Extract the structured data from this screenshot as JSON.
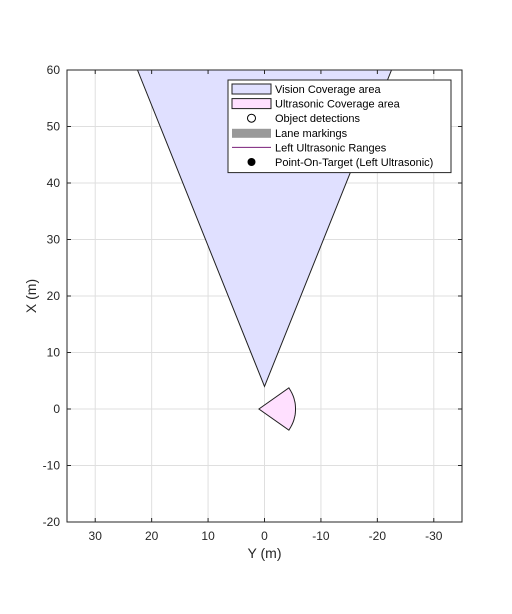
{
  "chart_data": {
    "type": "area",
    "title": "",
    "xlabel": "Y (m)",
    "ylabel": "X (m)",
    "x_direction": "reversed",
    "xlim": [
      -35,
      35
    ],
    "ylim": [
      -20,
      60
    ],
    "xticks": [
      30,
      20,
      10,
      0,
      -10,
      -20,
      -30
    ],
    "yticks": [
      -20,
      -10,
      0,
      10,
      20,
      30,
      40,
      50,
      60
    ],
    "grid": true,
    "legend_position": "top-right",
    "legend": [
      {
        "label": "Vision Coverage area",
        "marker": "patch",
        "fill": "#e0e0ff",
        "edge": "#202020"
      },
      {
        "label": "Ultrasonic Coverage area",
        "marker": "patch",
        "fill": "#ffe0ff",
        "edge": "#202020"
      },
      {
        "label": "Object detections",
        "marker": "open-circle",
        "color": "#000000"
      },
      {
        "label": "Lane markings",
        "marker": "band",
        "color": "#999999"
      },
      {
        "label": "Left Ultrasonic Ranges",
        "marker": "line",
        "color": "#7a1f7a"
      },
      {
        "label": "Point-On-Target (Left Ultrasonic)",
        "marker": "filled-circle",
        "color": "#000000"
      }
    ],
    "series": [
      {
        "name": "Vision Coverage area",
        "kind": "polygon",
        "fill": "#e0e0ff",
        "edge": "#202020",
        "points": [
          [
            0,
            4
          ],
          [
            22.5,
            60
          ],
          [
            -22.5,
            60
          ]
        ]
      },
      {
        "name": "Ultrasonic Coverage area",
        "kind": "sector",
        "fill": "#ffe0ff",
        "edge": "#202020",
        "center": [
          1,
          0
        ],
        "radius": 6.5,
        "start_angle_deg": 145,
        "end_angle_deg": 215
      }
    ]
  }
}
